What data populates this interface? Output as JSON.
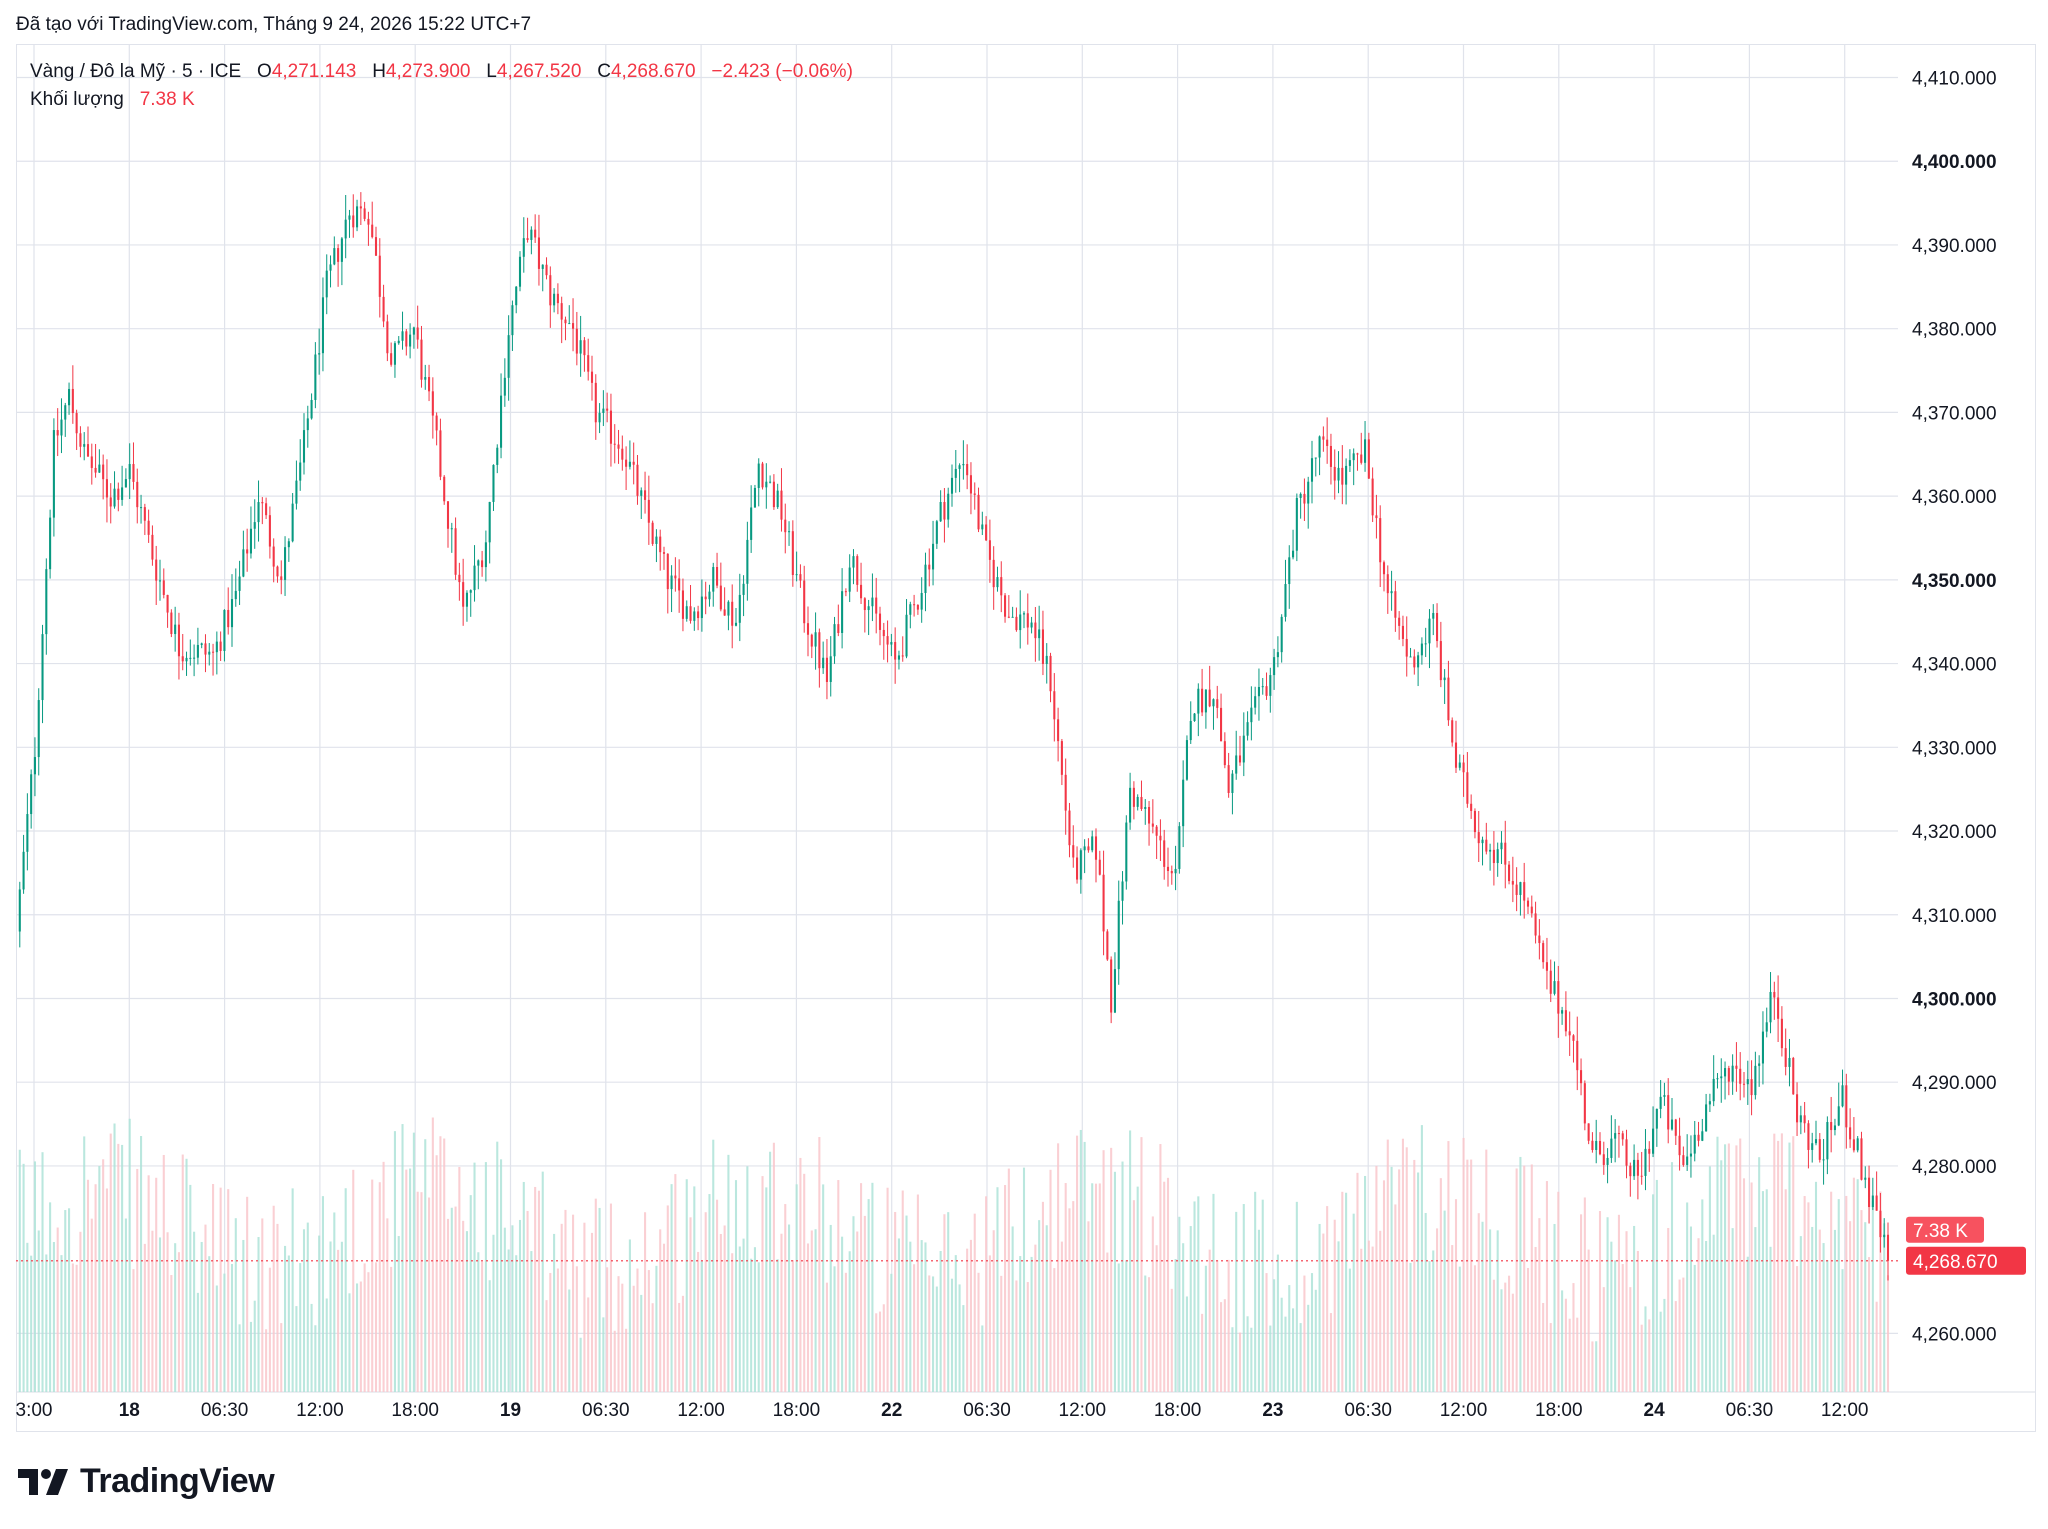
{
  "caption": "Đã tạo với TradingView.com, Tháng 9 24, 2026 15:22 UTC+7",
  "legend": {
    "symbol": "Vàng / Đô la Mỹ · 5 · ICE",
    "o_label": "O",
    "o_value": "4,271.143",
    "h_label": "H",
    "h_value": "4,273.900",
    "l_label": "L",
    "l_value": "4,267.520",
    "c_label": "C",
    "c_value": "4,268.670",
    "change": "−2.423 (−0.06%)",
    "volume_label": "Khối lượng",
    "volume_value": "7.38 K"
  },
  "badges": {
    "volume": "7.38 K",
    "price": "4,268.670"
  },
  "logo_text": "TradingView",
  "colors": {
    "up": "#089981",
    "down": "#f23645",
    "volume_up": "#aee3d8",
    "volume_down": "#f9c7cb",
    "grid": "#e0e3eb"
  },
  "chart_data": {
    "type": "candlestick",
    "symbol": "Vàng / Đô la Mỹ",
    "interval": "5",
    "y_ticks": [
      "4,410.000",
      "4,400.000",
      "4,390.000",
      "4,380.000",
      "4,370.000",
      "4,360.000",
      "4,350.000",
      "4,340.000",
      "4,330.000",
      "4,320.000",
      "4,310.000",
      "4,300.000",
      "4,290.000",
      "4,280.000",
      "4,260.000"
    ],
    "bold_ticks": [
      "4,400.000",
      "4,350.000",
      "4,300.000"
    ],
    "ylim": [
      4253,
      4414
    ],
    "x_ticks": [
      "3:00",
      "18",
      "06:30",
      "12:00",
      "18:00",
      "19",
      "06:30",
      "12:00",
      "18:00",
      "22",
      "06:30",
      "12:00",
      "18:00",
      "23",
      "06:30",
      "12:00",
      "18:00",
      "24",
      "06:30",
      "12:00"
    ],
    "bold_x_ticks": [
      "18",
      "19",
      "22",
      "23",
      "24"
    ],
    "last_price": 4268.67,
    "last_volume": "7.38 K",
    "price_path": [
      [
        0,
        4308
      ],
      [
        5,
        4330
      ],
      [
        10,
        4366
      ],
      [
        14,
        4372
      ],
      [
        18,
        4365
      ],
      [
        25,
        4360
      ],
      [
        30,
        4363
      ],
      [
        36,
        4353
      ],
      [
        43,
        4342
      ],
      [
        52,
        4341
      ],
      [
        58,
        4348
      ],
      [
        64,
        4360
      ],
      [
        70,
        4350
      ],
      [
        76,
        4366
      ],
      [
        82,
        4385
      ],
      [
        88,
        4394
      ],
      [
        93,
        4394
      ],
      [
        99,
        4376
      ],
      [
        105,
        4380
      ],
      [
        111,
        4366
      ],
      [
        118,
        4346
      ],
      [
        124,
        4355
      ],
      [
        130,
        4380
      ],
      [
        135,
        4392
      ],
      [
        141,
        4384
      ],
      [
        147,
        4380
      ],
      [
        153,
        4370
      ],
      [
        160,
        4366
      ],
      [
        166,
        4358
      ],
      [
        172,
        4350
      ],
      [
        178,
        4346
      ],
      [
        184,
        4350
      ],
      [
        190,
        4345
      ],
      [
        196,
        4364
      ],
      [
        202,
        4358
      ],
      [
        208,
        4346
      ],
      [
        214,
        4338
      ],
      [
        220,
        4353
      ],
      [
        226,
        4346
      ],
      [
        232,
        4340
      ],
      [
        238,
        4348
      ],
      [
        244,
        4358
      ],
      [
        250,
        4365
      ],
      [
        256,
        4353
      ],
      [
        262,
        4346
      ],
      [
        268,
        4345
      ],
      [
        273,
        4338
      ],
      [
        279,
        4315
      ],
      [
        285,
        4318
      ],
      [
        289,
        4300
      ],
      [
        294,
        4325
      ],
      [
        300,
        4320
      ],
      [
        306,
        4314
      ],
      [
        310,
        4335
      ],
      [
        316,
        4337
      ],
      [
        320,
        4325
      ],
      [
        326,
        4333
      ],
      [
        332,
        4340
      ],
      [
        338,
        4358
      ],
      [
        344,
        4366
      ],
      [
        350,
        4362
      ],
      [
        356,
        4365
      ],
      [
        362,
        4348
      ],
      [
        368,
        4340
      ],
      [
        374,
        4345
      ],
      [
        380,
        4328
      ],
      [
        386,
        4320
      ],
      [
        392,
        4317
      ],
      [
        398,
        4312
      ],
      [
        404,
        4302
      ],
      [
        410,
        4297
      ],
      [
        416,
        4281
      ],
      [
        422,
        4283
      ],
      [
        428,
        4278
      ],
      [
        434,
        4288
      ],
      [
        440,
        4280
      ],
      [
        446,
        4287
      ],
      [
        452,
        4292
      ],
      [
        458,
        4290
      ],
      [
        464,
        4301
      ],
      [
        470,
        4286
      ],
      [
        476,
        4281
      ],
      [
        482,
        4288
      ],
      [
        488,
        4278
      ],
      [
        494,
        4268.67
      ]
    ]
  }
}
